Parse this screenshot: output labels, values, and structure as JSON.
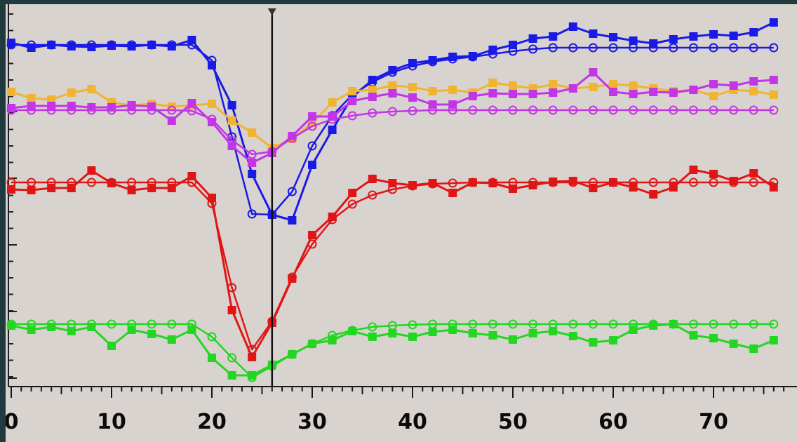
{
  "chart_data": {
    "type": "line",
    "title": "",
    "xlabel": "",
    "ylabel": "",
    "xlim": [
      0,
      77
    ],
    "x_ticks": [
      0,
      10,
      20,
      30,
      40,
      50,
      60,
      70
    ],
    "x_tick_labels": [
      "0",
      "10",
      "20",
      "30",
      "40",
      "50",
      "60",
      "70"
    ],
    "grid": false,
    "cursor_x": 26,
    "x": [
      0,
      2,
      4,
      6,
      8,
      10,
      12,
      14,
      16,
      18,
      20,
      22,
      24,
      26,
      28,
      30,
      32,
      34,
      36,
      38,
      40,
      42,
      44,
      46,
      48,
      50,
      52,
      54,
      56,
      58,
      60,
      62,
      64,
      66,
      68,
      70,
      72,
      74,
      76
    ],
    "series": [
      {
        "color": "#1a1ae6",
        "measured": [
          61,
          68,
          64,
          66,
          67,
          65,
          66,
          64,
          66,
          57,
          93,
          150,
          248,
          306,
          314,
          235,
          185,
          138,
          114,
          100,
          90,
          86,
          81,
          80,
          71,
          64,
          55,
          52,
          38,
          48,
          53,
          58,
          62,
          56,
          52,
          49,
          51,
          46,
          32
        ],
        "fit_circles": [
          64,
          64,
          64,
          64,
          64,
          64,
          64,
          64,
          64,
          64,
          86,
          195,
          305,
          306,
          273,
          208,
          165,
          135,
          117,
          103,
          94,
          88,
          84,
          81,
          77,
          73,
          70,
          68,
          68,
          68,
          68,
          68,
          68,
          68,
          68,
          68,
          68,
          68,
          68
        ]
      },
      {
        "color": "#f0b432",
        "measured": [
          131,
          140,
          142,
          132,
          127,
          146,
          150,
          148,
          152,
          150,
          148,
          172,
          189,
          211,
          198,
          175,
          146,
          130,
          128,
          122,
          124,
          130,
          128,
          132,
          118,
          122,
          126,
          120,
          126,
          124,
          120,
          122,
          126,
          130,
          128,
          137,
          128,
          130,
          135
        ],
        "fit_circles": null
      },
      {
        "color": "#c236e6",
        "measured": [
          154,
          151,
          151,
          151,
          153,
          153,
          150,
          152,
          172,
          147,
          174,
          208,
          232,
          218,
          194,
          166,
          166,
          144,
          138,
          133,
          139,
          149,
          149,
          137,
          133,
          134,
          134,
          132,
          126,
          103,
          131,
          134,
          131,
          132,
          128,
          120,
          122,
          116,
          114
        ],
        "fit_circles": [
          157,
          157,
          157,
          157,
          157,
          157,
          157,
          157,
          157,
          158,
          170,
          200,
          220,
          216,
          197,
          180,
          170,
          165,
          161,
          159,
          158,
          157,
          157,
          157,
          157,
          157,
          157,
          157,
          157,
          157,
          157,
          157,
          157,
          157,
          157,
          157,
          157,
          157,
          157
        ]
      },
      {
        "color": "#e01616",
        "measured": [
          270,
          271,
          268,
          268,
          243,
          261,
          271,
          268,
          268,
          251,
          282,
          442,
          509,
          460,
          397,
          335,
          309,
          275,
          255,
          261,
          264,
          261,
          275,
          260,
          261,
          269,
          264,
          259,
          258,
          268,
          260,
          267,
          277,
          267,
          242,
          248,
          258,
          247,
          267
        ],
        "fit_circles": [
          260,
          260,
          260,
          260,
          260,
          260,
          260,
          260,
          260,
          260,
          290,
          410,
          498,
          458,
          395,
          348,
          313,
          291,
          278,
          270,
          265,
          262,
          261,
          260,
          260,
          260,
          260,
          260,
          260,
          260,
          260,
          260,
          260,
          260,
          260,
          260,
          260,
          260,
          260
        ]
      },
      {
        "color": "#22d622",
        "measured": [
          464,
          470,
          466,
          472,
          466,
          493,
          470,
          476,
          484,
          470,
          510,
          535,
          535,
          520,
          505,
          490,
          485,
          472,
          480,
          475,
          480,
          473,
          470,
          475,
          478,
          484,
          475,
          472,
          479,
          488,
          485,
          470,
          464,
          462,
          478,
          482,
          490,
          497,
          485
        ],
        "fit_circles": [
          462,
          462,
          462,
          462,
          462,
          462,
          462,
          462,
          462,
          462,
          480,
          510,
          538,
          522,
          505,
          490,
          478,
          471,
          466,
          464,
          463,
          462,
          462,
          462,
          462,
          462,
          462,
          462,
          462,
          462,
          462,
          462,
          462,
          462,
          462,
          462,
          462,
          462,
          462
        ]
      }
    ]
  }
}
